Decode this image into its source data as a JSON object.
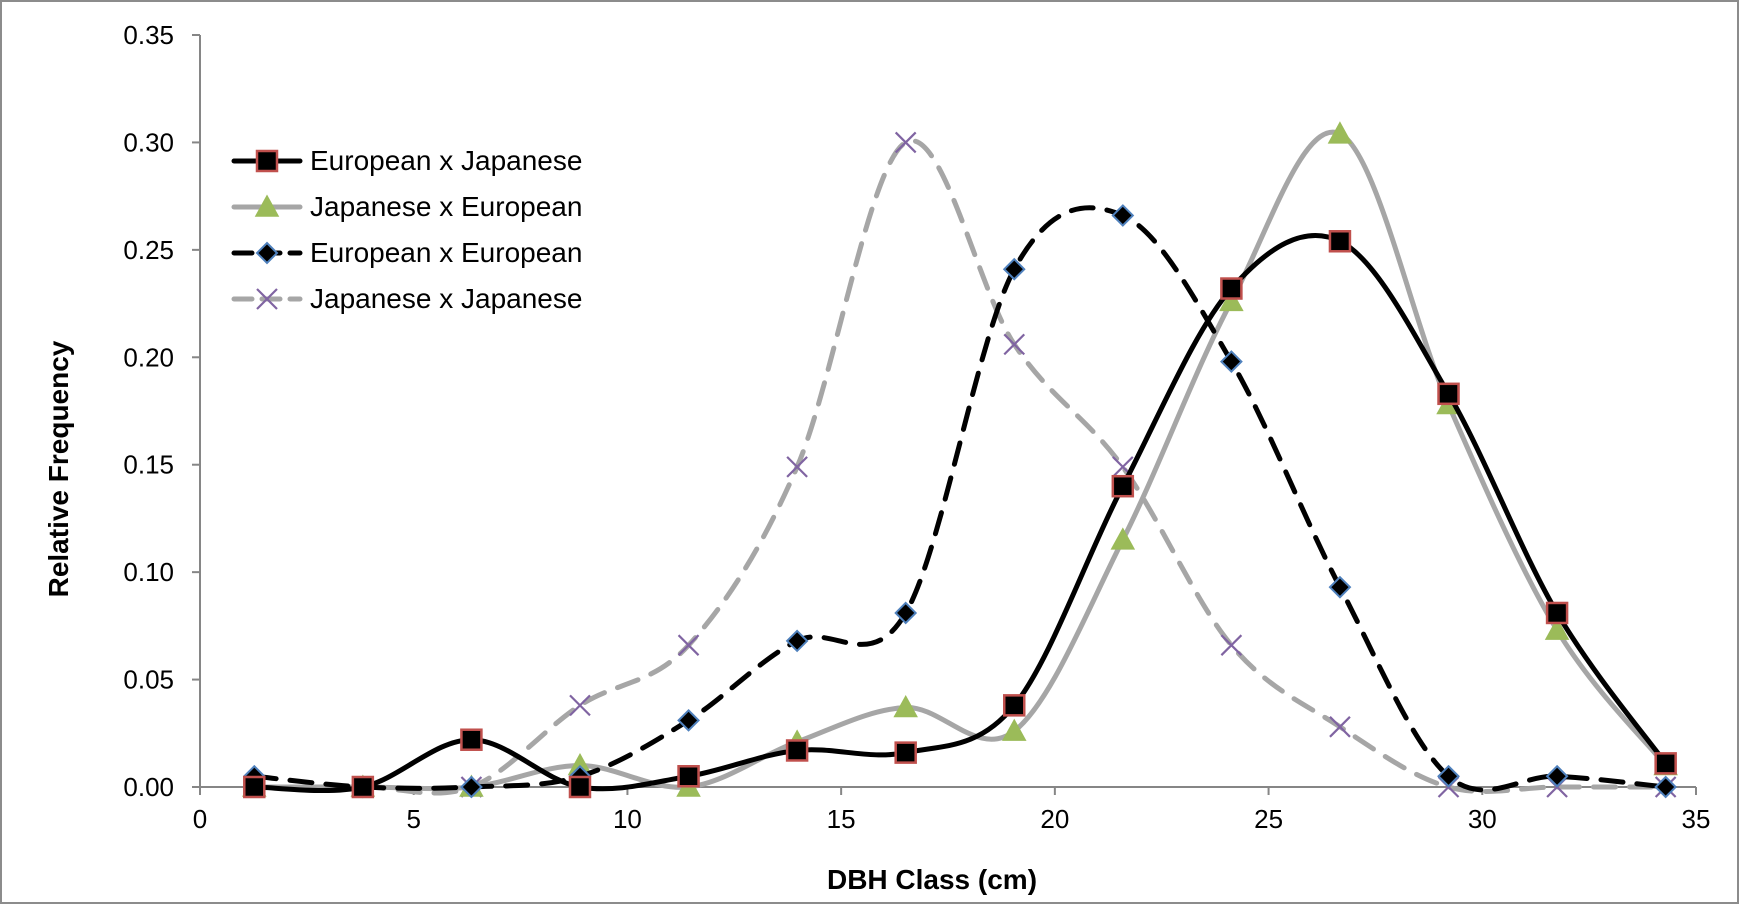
{
  "chart_data": {
    "type": "line",
    "title": "",
    "xlabel": "DBH Class (cm)",
    "ylabel": "Relative Frequency",
    "xlim": [
      0,
      35
    ],
    "ylim": [
      0,
      0.35
    ],
    "x_ticks": [
      "0",
      "5",
      "10",
      "15",
      "20",
      "25",
      "30",
      "35"
    ],
    "x_tick_values": [
      0,
      5,
      10,
      15,
      20,
      25,
      30,
      35
    ],
    "y_ticks": [
      "0.00",
      "0.05",
      "0.10",
      "0.15",
      "0.20",
      "0.25",
      "0.30",
      "0.35"
    ],
    "y_tick_values": [
      0,
      0.05,
      0.1,
      0.15,
      0.2,
      0.25,
      0.3,
      0.35
    ],
    "grid": false,
    "legend_position": "top-left",
    "x": [
      1.27,
      3.81,
      6.35,
      8.89,
      11.43,
      13.97,
      16.51,
      19.05,
      21.59,
      24.13,
      26.67,
      29.21,
      31.75,
      34.29
    ],
    "series": [
      {
        "name": "European x Japanese",
        "values": [
          0.0,
          0.0,
          0.022,
          0.0,
          0.005,
          0.017,
          0.016,
          0.038,
          0.14,
          0.232,
          0.254,
          0.183,
          0.081,
          0.011
        ],
        "color": "#000000",
        "marker_fill": "#000000",
        "marker_stroke": "#c0504d",
        "marker": "square",
        "dash": "solid"
      },
      {
        "name": "Japanese x European",
        "values": [
          0.0,
          0.0,
          0.0,
          0.01,
          0.0,
          0.021,
          0.037,
          0.026,
          0.115,
          0.226,
          0.304,
          0.178,
          0.073,
          0.01
        ],
        "color": "#a6a6a6",
        "marker_fill": "#9bbb59",
        "marker_stroke": "#9bbb59",
        "marker": "triangle",
        "dash": "solid"
      },
      {
        "name": "European x European",
        "values": [
          0.005,
          0.0,
          0.0,
          0.005,
          0.031,
          0.068,
          0.081,
          0.241,
          0.266,
          0.198,
          0.093,
          0.005,
          0.005,
          0.0
        ],
        "color": "#000000",
        "marker_fill": "#000000",
        "marker_stroke": "#4f81bd",
        "marker": "diamond",
        "dash": "dashed"
      },
      {
        "name": "Japanese x Japanese",
        "values": [
          0.0,
          0.0,
          0.0,
          0.038,
          0.066,
          0.149,
          0.3,
          0.206,
          0.149,
          0.066,
          0.028,
          0.0,
          0.0,
          0.0
        ],
        "color": "#a6a6a6",
        "marker_fill": "none",
        "marker_stroke": "#8064a2",
        "marker": "x",
        "dash": "dashed"
      }
    ]
  }
}
